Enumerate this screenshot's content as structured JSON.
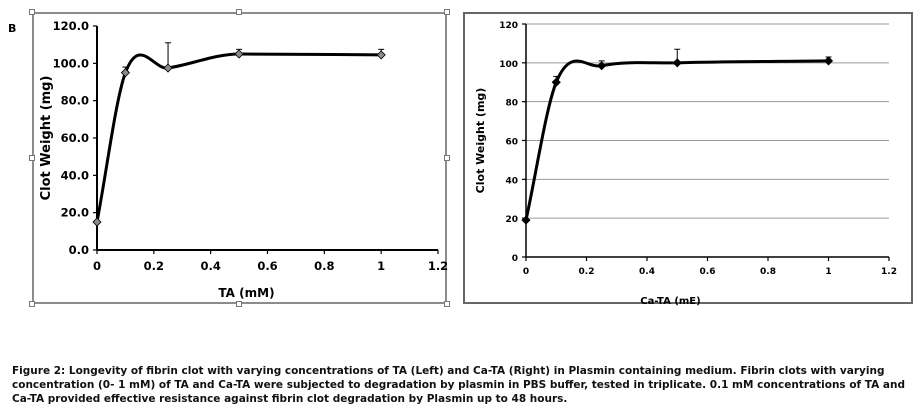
{
  "panel_label": "B",
  "chart_data": [
    {
      "type": "scatter",
      "smoothed_line": true,
      "ylabel": "Clot Weight (mg)",
      "xlabel": "TA  (mM)",
      "xlim": [
        0,
        1.2
      ],
      "ylim": [
        0,
        120
      ],
      "x_ticks": [
        "0",
        "0.2",
        "0.4",
        "0.6",
        "0.8",
        "1",
        "1.2"
      ],
      "y_ticks": [
        "0.0",
        "20.0",
        "40.0",
        "60.0",
        "80.0",
        "100.0",
        "120.0"
      ],
      "grid": false,
      "marker": "diamond",
      "marker_color": "#8a8a8a",
      "line_color": "#000000",
      "points": [
        {
          "x": 0,
          "y": 15,
          "err": 0
        },
        {
          "x": 0.1,
          "y": 95,
          "err": 3
        },
        {
          "x": 0.25,
          "y": 97.5,
          "err": 13.5
        },
        {
          "x": 0.5,
          "y": 105,
          "err": 2.5
        },
        {
          "x": 1,
          "y": 104.5,
          "err": 3
        }
      ]
    },
    {
      "type": "scatter",
      "smoothed_line": true,
      "ylabel": "Clot Weight (mg)",
      "xlabel": "Ca-TA (mE)",
      "xlim": [
        0,
        1.2
      ],
      "ylim": [
        0,
        120
      ],
      "x_ticks": [
        "0",
        "0.2",
        "0.4",
        "0.6",
        "0.8",
        "1",
        "1.2"
      ],
      "y_ticks": [
        "0",
        "20",
        "40",
        "60",
        "80",
        "100",
        "120"
      ],
      "grid": true,
      "marker": "diamond",
      "marker_color": "#000000",
      "line_color": "#000000",
      "points": [
        {
          "x": 0,
          "y": 19,
          "err": 0
        },
        {
          "x": 0.1,
          "y": 90,
          "err": 3
        },
        {
          "x": 0.25,
          "y": 98.5,
          "err": 2.5
        },
        {
          "x": 0.5,
          "y": 100,
          "err": 7
        },
        {
          "x": 1,
          "y": 101,
          "err": 2
        }
      ]
    }
  ],
  "caption": "Figure 2: Longevity of fibrin clot with varying concentrations of TA (Left) and Ca-TA (Right) in Plasmin containing medium. Fibrin clots with varying concentration (0- 1 mM)  of TA and Ca-TA were subjected to degradation by plasmin in PBS buffer, tested in triplicate.  0.1 mM concentrations of TA  and Ca-TA provided effective resistance against fibrin clot degradation by Plasmin up to 48 hours."
}
